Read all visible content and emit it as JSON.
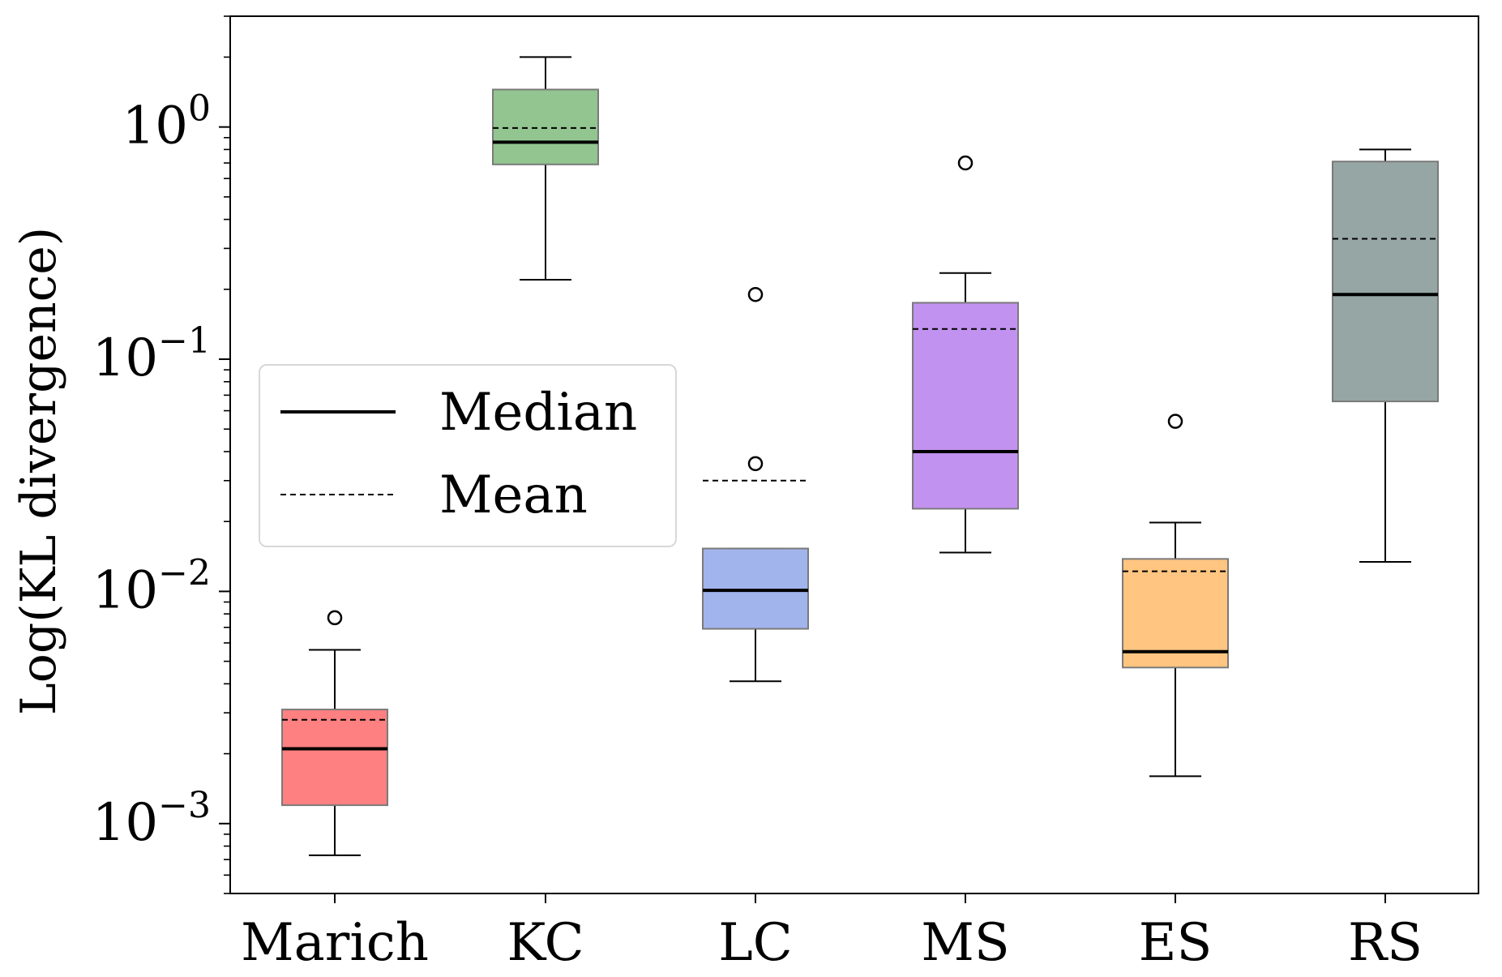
{
  "chart_data": {
    "type": "box",
    "ylabel": "Log(KL divergence)",
    "yscale": "log",
    "ylim": [
      0.0005,
      3
    ],
    "y_ticks": [
      {
        "value": 0.001,
        "base": "10",
        "exp": "−3"
      },
      {
        "value": 0.01,
        "base": "10",
        "exp": "−2"
      },
      {
        "value": 0.1,
        "base": "10",
        "exp": "−1"
      },
      {
        "value": 1,
        "base": "10",
        "exp": "0"
      }
    ],
    "categories": [
      "Marich",
      "KC",
      "LC",
      "MS",
      "ES",
      "RS"
    ],
    "boxes": [
      {
        "name": "Marich",
        "color": "#ff8080",
        "whisker_low": 0.00073,
        "q1": 0.0012,
        "median": 0.0021,
        "mean": 0.0028,
        "q3": 0.0031,
        "whisker_high": 0.0056,
        "outliers": [
          0.0077
        ]
      },
      {
        "name": "KC",
        "color": "#92c58f",
        "whisker_low": 0.22,
        "q1": 0.69,
        "median": 0.86,
        "mean": 0.99,
        "q3": 1.45,
        "whisker_high": 2.0,
        "outliers": []
      },
      {
        "name": "LC",
        "color": "#a1b4ec",
        "whisker_low": 0.0041,
        "q1": 0.0069,
        "median": 0.0101,
        "mean": 0.03,
        "q3": 0.0153,
        "whisker_high": 0.0153,
        "outliers": [
          0.0355,
          0.19
        ]
      },
      {
        "name": "MS",
        "color": "#c292f0",
        "whisker_low": 0.0147,
        "q1": 0.0227,
        "median": 0.04,
        "mean": 0.135,
        "q3": 0.175,
        "whisker_high": 0.235,
        "outliers": [
          0.7
        ]
      },
      {
        "name": "ES",
        "color": "#ffc581",
        "whisker_low": 0.0016,
        "q1": 0.0047,
        "median": 0.0055,
        "mean": 0.0122,
        "q3": 0.0138,
        "whisker_high": 0.0198,
        "outliers": [
          0.054
        ]
      },
      {
        "name": "RS",
        "color": "#96a6a5",
        "whisker_low": 0.0134,
        "q1": 0.0658,
        "median": 0.19,
        "mean": 0.33,
        "q3": 0.71,
        "whisker_high": 0.8,
        "outliers": []
      }
    ],
    "legend": {
      "placement": "center-left",
      "entries": [
        {
          "label": "Median",
          "style": "solid"
        },
        {
          "label": "Mean",
          "style": "dashed"
        }
      ]
    },
    "grid": false
  }
}
